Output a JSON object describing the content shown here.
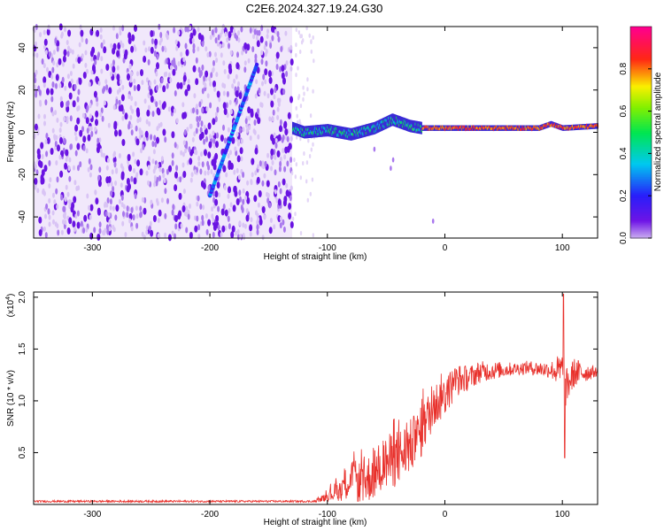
{
  "title": "C2E6.2024.327.19.24.G30",
  "chart_data": [
    {
      "type": "heatmap",
      "xlabel": "Height of straight line (km)",
      "ylabel": "Frequency (Hz)",
      "xlim": [
        -350,
        130
      ],
      "ylim": [
        -50,
        50
      ],
      "xticks": [
        -300,
        -200,
        -100,
        0,
        100
      ],
      "yticks": [
        -40,
        -20,
        0,
        20,
        40
      ],
      "noise_region_x": [
        -350,
        -130
      ],
      "chirp": {
        "x": [
          -200,
          -160
        ],
        "y": [
          -30,
          32
        ]
      },
      "signal_trace": {
        "x": [
          -130,
          -120,
          -100,
          -80,
          -60,
          -45,
          -30,
          -20,
          0,
          40,
          80,
          90,
          100,
          130
        ],
        "y": [
          2,
          0,
          1,
          -1,
          2,
          6,
          3,
          2,
          2,
          2,
          2,
          4,
          2,
          3
        ]
      },
      "colorbar": {
        "label": "Normalized spectral amplitude",
        "ticks": [
          0.0,
          0.2,
          0.4,
          0.6,
          0.8
        ]
      }
    },
    {
      "type": "line",
      "xlabel": "Height of straight line (km)",
      "ylabel": "SNR (10 * v/v)",
      "exponent_label": "(x10",
      "exponent_power": "4",
      "exponent_close": ")",
      "xlim": [
        -350,
        130
      ],
      "ylim": [
        0,
        2.05
      ],
      "xticks": [
        -300,
        -200,
        -100,
        0,
        100
      ],
      "yticks": [
        "0.5",
        "1.0",
        "1.5",
        "2.0"
      ],
      "ytick_values": [
        0.5,
        1.0,
        1.5,
        2.0
      ],
      "color": "#e8302b",
      "envelope": {
        "x": [
          -350,
          -110,
          -100,
          -90,
          -80,
          -70,
          -60,
          -50,
          -40,
          -30,
          -20,
          -10,
          0,
          10,
          20,
          30,
          50,
          70,
          90,
          100,
          102,
          110,
          130
        ],
        "y": [
          0.03,
          0.03,
          0.08,
          0.14,
          0.25,
          0.2,
          0.3,
          0.4,
          0.45,
          0.55,
          0.7,
          0.95,
          1.05,
          1.2,
          1.22,
          1.28,
          1.3,
          1.32,
          1.3,
          1.28,
          1.1,
          1.27,
          1.28
        ]
      },
      "noise_amplitude": {
        "x": [
          -350,
          -110,
          -100,
          -80,
          -60,
          -40,
          -20,
          0,
          20,
          60,
          90,
          100,
          130
        ],
        "y": [
          0.01,
          0.01,
          0.05,
          0.18,
          0.25,
          0.28,
          0.25,
          0.2,
          0.12,
          0.06,
          0.08,
          0.2,
          0.04
        ]
      },
      "spike": {
        "x": 101,
        "y_max": 2.03,
        "y_min": 0.45
      }
    }
  ]
}
